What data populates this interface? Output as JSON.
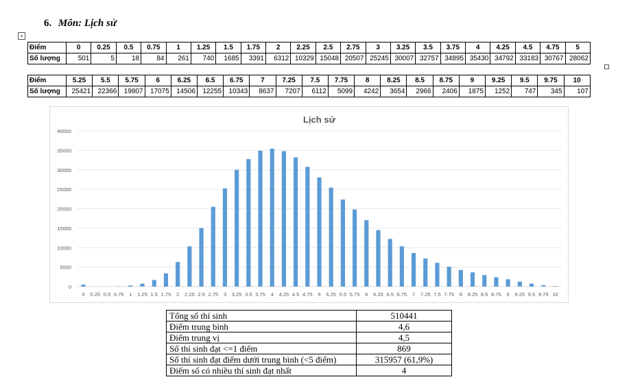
{
  "heading": {
    "number": "6.",
    "label": "Môn: Lịch sử"
  },
  "table1": {
    "label_score": "Điểm",
    "label_count": "Số lượng",
    "scores": [
      "0",
      "0.25",
      "0.5",
      "0.75",
      "1",
      "1.25",
      "1.5",
      "1.75",
      "2",
      "2.25",
      "2.5",
      "2.75",
      "3",
      "3.25",
      "3.5",
      "3.75",
      "4",
      "4.25",
      "4.5",
      "4.75",
      "5"
    ],
    "counts": [
      "501",
      "5",
      "18",
      "84",
      "261",
      "740",
      "1685",
      "3391",
      "6312",
      "10329",
      "15048",
      "20507",
      "25245",
      "30007",
      "32757",
      "34895",
      "35430",
      "34792",
      "33183",
      "30767",
      "28062"
    ]
  },
  "table2": {
    "label_score": "Điểm",
    "label_count": "Số lượng",
    "scores": [
      "5.25",
      "5.5",
      "5.75",
      "6",
      "6.25",
      "6.5",
      "6.75",
      "7",
      "7.25",
      "7.5",
      "7.75",
      "8",
      "8.25",
      "8.5",
      "8.75",
      "9",
      "9.25",
      "9.5",
      "9.75",
      "10"
    ],
    "counts": [
      "25421",
      "22366",
      "19807",
      "17075",
      "14506",
      "12255",
      "10343",
      "8637",
      "7207",
      "6112",
      "5099",
      "4242",
      "3654",
      "2966",
      "2406",
      "1875",
      "1252",
      "747",
      "345",
      "107"
    ]
  },
  "chart_data": {
    "type": "bar",
    "title": "Lịch sử",
    "xlabel": "",
    "ylabel": "",
    "ylim": [
      0,
      40000
    ],
    "yticks": [
      "0",
      "5000",
      "10000",
      "15000",
      "20000",
      "25000",
      "30000",
      "35000",
      "40000"
    ],
    "grid": true,
    "bar_color": "#5b9bd5",
    "categories": [
      "0",
      "0.25",
      "0.5",
      "0.75",
      "1",
      "1.25",
      "1.5",
      "1.75",
      "2",
      "2.25",
      "2.5",
      "2.75",
      "3",
      "3.25",
      "3.5",
      "3.75",
      "4",
      "4.25",
      "4.5",
      "4.75",
      "5",
      "5.25",
      "5.5",
      "5.75",
      "6",
      "6.25",
      "6.5",
      "6.75",
      "7",
      "7.25",
      "7.5",
      "7.75",
      "8",
      "8.25",
      "8.5",
      "8.75",
      "9",
      "9.25",
      "9.5",
      "9.75",
      "10"
    ],
    "values": [
      501,
      5,
      18,
      84,
      261,
      740,
      1685,
      3391,
      6312,
      10329,
      15048,
      20507,
      25245,
      30007,
      32757,
      34895,
      35430,
      34792,
      33183,
      30767,
      28062,
      25421,
      22366,
      19807,
      17075,
      14506,
      12255,
      10343,
      8637,
      7207,
      6112,
      5099,
      4242,
      3654,
      2966,
      2406,
      1875,
      1252,
      747,
      345,
      107
    ]
  },
  "stats": [
    {
      "label": "Tổng số thí sinh",
      "value": "510441"
    },
    {
      "label": "Điểm trung bình",
      "value": "4,6"
    },
    {
      "label": "Điểm trung vị",
      "value": "4,5"
    },
    {
      "label": "Số thí sinh đạt <=1 điểm",
      "value": "869"
    },
    {
      "label": "Số thí sinh đạt điểm dưới trung bình (<5 điểm)",
      "value": "315957 (61,9%)"
    },
    {
      "label": "Điểm số có nhiều thí sinh đạt nhất",
      "value": "4"
    }
  ]
}
